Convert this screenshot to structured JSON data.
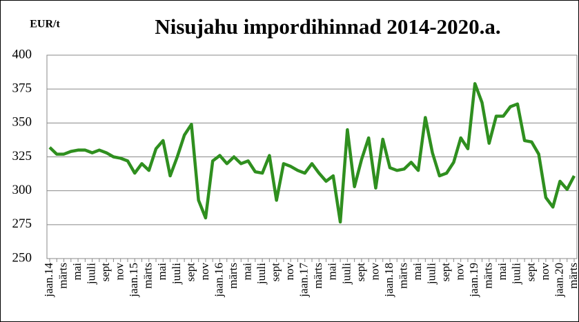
{
  "chart_data": {
    "type": "line",
    "title": "Nisujahu impordihinnad 2014-2020.a.",
    "y_label": "EUR/t",
    "categories": [
      "jaan.14",
      null,
      "märts",
      null,
      "mai",
      null,
      "juuli",
      null,
      "sept",
      null,
      "nov",
      null,
      "jaan.15",
      null,
      "märts",
      null,
      "mai",
      null,
      "juuli",
      null,
      "sept",
      null,
      "nov",
      null,
      "jaan.16",
      null,
      "märts",
      null,
      "mai",
      null,
      "juuli",
      null,
      "sept",
      null,
      "nov",
      null,
      "jaan.17",
      null,
      "märts",
      null,
      "mai",
      null,
      "juuli",
      null,
      "sept",
      null,
      "nov",
      null,
      "jaan.18",
      null,
      "märts",
      null,
      "mai",
      null,
      "juuli",
      null,
      "sept",
      null,
      "nov",
      null,
      "jaan.19",
      null,
      "märts",
      null,
      "mai",
      null,
      "juuli",
      null,
      "sept",
      null,
      "nov",
      null,
      "jaan.20",
      null,
      "märts"
    ],
    "series": [
      {
        "name": "Nisujahu",
        "color": "#2f8f1f",
        "values": [
          332,
          327,
          327,
          329,
          330,
          330,
          328,
          330,
          328,
          325,
          324,
          322,
          313,
          320,
          315,
          331,
          337,
          311,
          325,
          341,
          349,
          293,
          280,
          322,
          326,
          320,
          325,
          320,
          322,
          314,
          313,
          326,
          293,
          320,
          318,
          315,
          313,
          320,
          313,
          307,
          311,
          277,
          345,
          303,
          323,
          339,
          302,
          338,
          317,
          315,
          316,
          321,
          315,
          354,
          328,
          311,
          313,
          321,
          339,
          331,
          379,
          365,
          335,
          355,
          355,
          362,
          364,
          337,
          336,
          327,
          295,
          288,
          307,
          301,
          311
        ]
      }
    ],
    "ylim": [
      250,
      400
    ],
    "yticks": [
      250,
      275,
      300,
      325,
      350,
      375,
      400
    ],
    "grid": true
  }
}
